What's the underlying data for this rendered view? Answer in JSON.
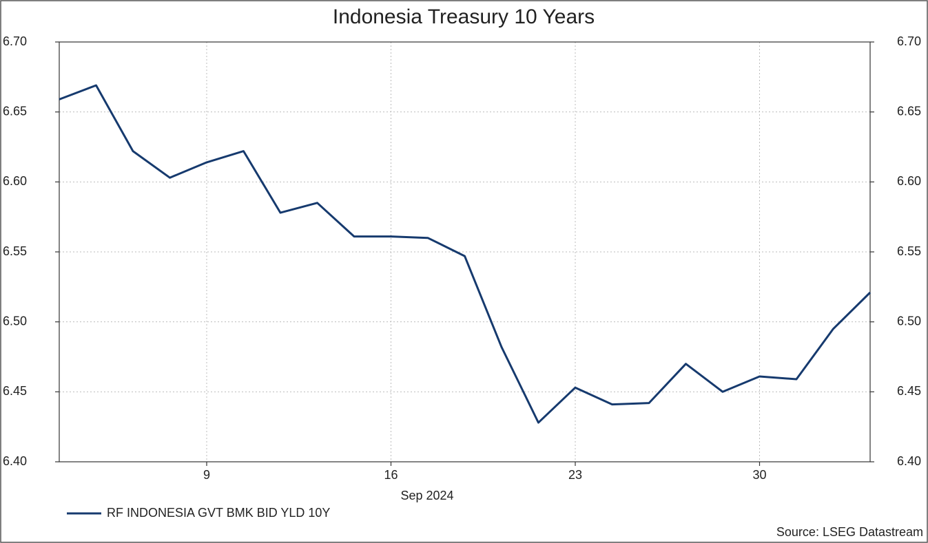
{
  "chart_data": {
    "type": "line",
    "title": "Indonesia Treasury 10 Years",
    "categories": [
      null,
      null,
      null,
      null,
      "9",
      null,
      null,
      null,
      null,
      "16",
      null,
      null,
      null,
      null,
      "23",
      null,
      null,
      null,
      null,
      "30",
      null,
      null,
      null
    ],
    "x_label": "Sep 2024",
    "series": [
      {
        "name": "RF INDONESIA GVT BMK BID YLD 10Y",
        "color": "#163a6e",
        "values": [
          6.659,
          6.669,
          6.622,
          6.603,
          6.614,
          6.622,
          6.578,
          6.585,
          6.561,
          6.561,
          6.56,
          6.547,
          6.482,
          6.428,
          6.453,
          6.441,
          6.442,
          6.47,
          6.45,
          6.461,
          6.459,
          6.495,
          6.521
        ]
      }
    ],
    "ylim": [
      6.4,
      6.7
    ],
    "yticks": [
      {
        "value": 6.4,
        "label": "6.40"
      },
      {
        "value": 6.45,
        "label": "6.45"
      },
      {
        "value": 6.5,
        "label": "6.50"
      },
      {
        "value": 6.55,
        "label": "6.55"
      },
      {
        "value": 6.6,
        "label": "6.60"
      },
      {
        "value": 6.65,
        "label": "6.65"
      },
      {
        "value": 6.7,
        "label": "6.70"
      }
    ],
    "grid": true,
    "legend_position": "bottom-left",
    "source": "Source: LSEG Datastream"
  }
}
